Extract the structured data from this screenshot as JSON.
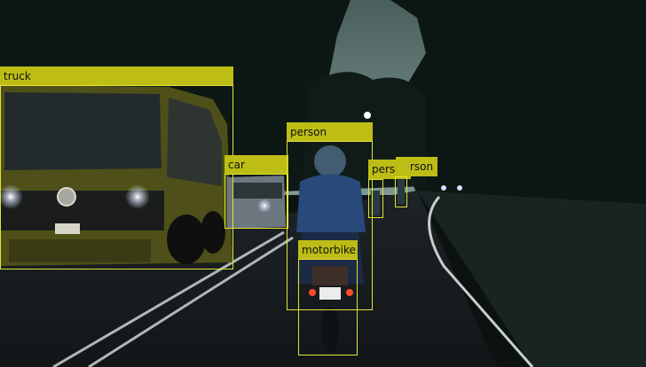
{
  "image": {
    "description_colors": {
      "sky": "#6f8a86",
      "foliage": "#0e1916",
      "road": "#1b2022",
      "lane_marking": "#b7c0bd",
      "van_body": "#5a5a1e",
      "rider_helmet": "#3f5a70",
      "rider_jacket": "#2c4c7c"
    }
  },
  "overlay": {
    "box_color": "#e2e23a",
    "label_bg_color": "#bdbd16",
    "label_text_color": "#111111"
  },
  "detections": [
    {
      "label": "truck"
    },
    {
      "label": "car"
    },
    {
      "label": "person"
    },
    {
      "label": "person"
    },
    {
      "label": "rson"
    },
    {
      "label": "motorbike"
    }
  ]
}
